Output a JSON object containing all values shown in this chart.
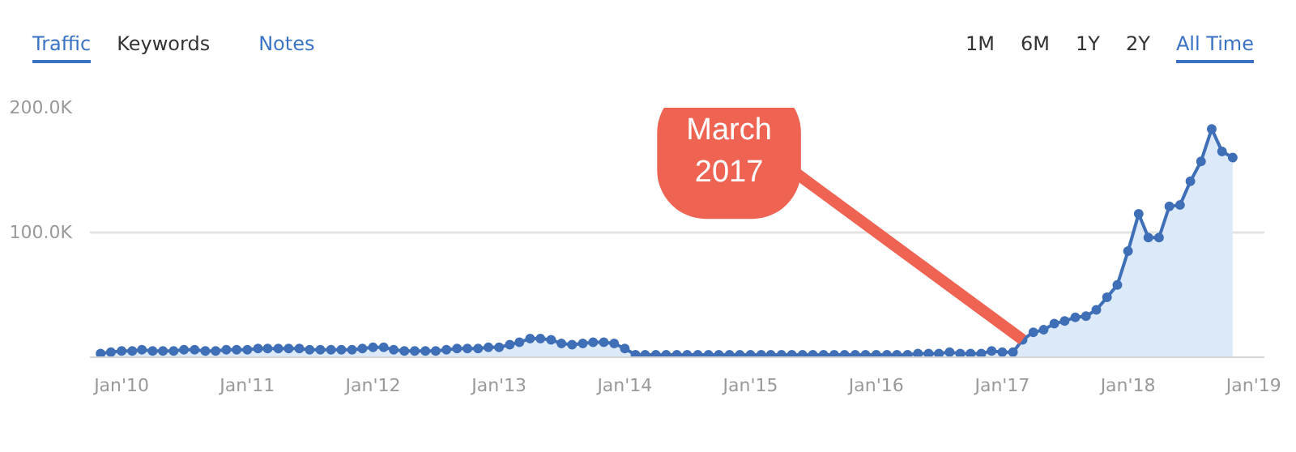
{
  "chart_data": {
    "type": "area",
    "x": [
      "2009-11",
      "2009-12",
      "2010-01",
      "2010-02",
      "2010-03",
      "2010-04",
      "2010-05",
      "2010-06",
      "2010-07",
      "2010-08",
      "2010-09",
      "2010-10",
      "2010-11",
      "2010-12",
      "2011-01",
      "2011-02",
      "2011-03",
      "2011-04",
      "2011-05",
      "2011-06",
      "2011-07",
      "2011-08",
      "2011-09",
      "2011-10",
      "2011-11",
      "2011-12",
      "2012-01",
      "2012-02",
      "2012-03",
      "2012-04",
      "2012-05",
      "2012-06",
      "2012-07",
      "2012-08",
      "2012-09",
      "2012-10",
      "2012-11",
      "2012-12",
      "2013-01",
      "2013-02",
      "2013-03",
      "2013-04",
      "2013-05",
      "2013-06",
      "2013-07",
      "2013-08",
      "2013-09",
      "2013-10",
      "2013-11",
      "2013-12",
      "2014-01",
      "2014-02",
      "2014-03",
      "2014-04",
      "2014-05",
      "2014-06",
      "2014-07",
      "2014-08",
      "2014-09",
      "2014-10",
      "2014-11",
      "2014-12",
      "2015-01",
      "2015-02",
      "2015-03",
      "2015-04",
      "2015-05",
      "2015-06",
      "2015-07",
      "2015-08",
      "2015-09",
      "2015-10",
      "2015-11",
      "2015-12",
      "2016-01",
      "2016-02",
      "2016-03",
      "2016-04",
      "2016-05",
      "2016-06",
      "2016-07",
      "2016-08",
      "2016-09",
      "2016-10",
      "2016-11",
      "2016-12",
      "2017-01",
      "2017-02",
      "2017-03",
      "2017-04",
      "2017-05",
      "2017-06",
      "2017-07",
      "2017-08",
      "2017-09",
      "2017-10",
      "2017-11",
      "2017-12",
      "2018-01",
      "2018-02",
      "2018-03",
      "2018-04",
      "2018-05",
      "2018-06",
      "2018-07",
      "2018-08",
      "2018-09",
      "2018-10",
      "2018-11"
    ],
    "series": [
      {
        "color": "#3f6fb6",
        "values": [
          3000,
          4000,
          5000,
          5000,
          6000,
          5000,
          5000,
          5000,
          6000,
          6000,
          5000,
          5000,
          6000,
          6000,
          6000,
          7000,
          7000,
          7000,
          7000,
          7000,
          6000,
          6000,
          6000,
          6000,
          6000,
          7000,
          8000,
          8000,
          6000,
          5000,
          5000,
          5000,
          5000,
          6000,
          7000,
          7000,
          7000,
          8000,
          8000,
          10000,
          12000,
          15000,
          15000,
          14000,
          11000,
          10000,
          11000,
          12000,
          12000,
          11000,
          7000,
          2000,
          2000,
          2000,
          2000,
          2000,
          2000,
          2000,
          2000,
          2000,
          2000,
          2000,
          2000,
          2000,
          2000,
          2000,
          2000,
          2000,
          2000,
          2000,
          2000,
          2000,
          2000,
          2000,
          2000,
          2000,
          2000,
          2000,
          3000,
          3000,
          3000,
          4000,
          3000,
          3000,
          3000,
          5000,
          4000,
          4000,
          14000,
          20000,
          22000,
          27000,
          29000,
          32000,
          33000,
          38000,
          48000,
          58000,
          85000,
          115000,
          96000,
          96000,
          121000,
          122000,
          141000,
          157000,
          183000,
          165000,
          160000
        ]
      }
    ],
    "xlim": [
      "2009-10",
      "2019-02"
    ],
    "xticks": [
      {
        "value": "2010-01",
        "label": "Jan'10"
      },
      {
        "value": "2011-01",
        "label": "Jan'11"
      },
      {
        "value": "2012-01",
        "label": "Jan'12"
      },
      {
        "value": "2013-01",
        "label": "Jan'13"
      },
      {
        "value": "2014-01",
        "label": "Jan'14"
      },
      {
        "value": "2015-01",
        "label": "Jan'15"
      },
      {
        "value": "2016-01",
        "label": "Jan'16"
      },
      {
        "value": "2017-01",
        "label": "Jan'17"
      },
      {
        "value": "2018-01",
        "label": "Jan'18"
      },
      {
        "value": "2019-01",
        "label": "Jan'19"
      }
    ],
    "ylim": [
      0,
      200000
    ],
    "yticks": [
      {
        "value": 0,
        "label": null
      },
      {
        "value": 100000,
        "label": "100.0K"
      },
      {
        "value": 200000,
        "label": "200.0K"
      }
    ],
    "grid": "y",
    "marker": "circle",
    "annotations": [
      {
        "text": "March 2017",
        "x": "2017-03",
        "y": 14000
      },
      "Traffic",
      "Keywords",
      "Notes",
      "1M",
      "6M",
      "1Y",
      "2Y",
      "All Time"
    ]
  }
}
